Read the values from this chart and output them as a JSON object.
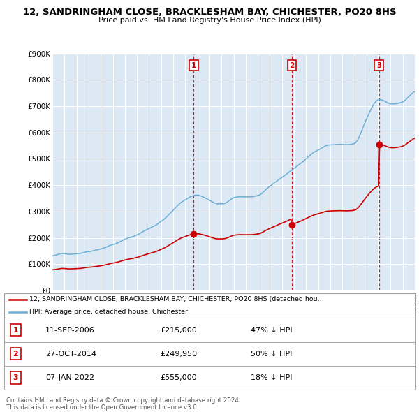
{
  "title": "12, SANDRINGHAM CLOSE, BRACKLESHAM BAY, CHICHESTER, PO20 8HS",
  "subtitle": "Price paid vs. HM Land Registry's House Price Index (HPI)",
  "ylim": [
    0,
    900000
  ],
  "yticks": [
    0,
    100000,
    200000,
    300000,
    400000,
    500000,
    600000,
    700000,
    800000,
    900000
  ],
  "ytick_labels": [
    "£0",
    "£100K",
    "£200K",
    "£300K",
    "£400K",
    "£500K",
    "£600K",
    "£700K",
    "£800K",
    "£900K"
  ],
  "bg_color": "#dce9f5",
  "hpi_color": "#6baed6",
  "price_color": "#cc0000",
  "sales": [
    {
      "date": 2006.7,
      "price": 215000,
      "label": "1"
    },
    {
      "date": 2014.82,
      "price": 249950,
      "label": "2"
    },
    {
      "date": 2022.03,
      "price": 555000,
      "label": "3"
    }
  ],
  "sale_table": [
    {
      "num": "1",
      "date": "11-SEP-2006",
      "price": "£215,000",
      "note": "47% ↓ HPI"
    },
    {
      "num": "2",
      "date": "27-OCT-2014",
      "price": "£249,950",
      "note": "50% ↓ HPI"
    },
    {
      "num": "3",
      "date": "07-JAN-2022",
      "price": "£555,000",
      "note": "18% ↓ HPI"
    }
  ],
  "legend_line1": "12, SANDRINGHAM CLOSE, BRACKLESHAM BAY, CHICHESTER, PO20 8HS (detached hou…",
  "legend_line2": "HPI: Average price, detached house, Chichester",
  "footer": "Contains HM Land Registry data © Crown copyright and database right 2024.\nThis data is licensed under the Open Government Licence v3.0.",
  "xmin": 1995,
  "xmax": 2025,
  "figwidth": 6.0,
  "figheight": 5.9,
  "dpi": 100
}
